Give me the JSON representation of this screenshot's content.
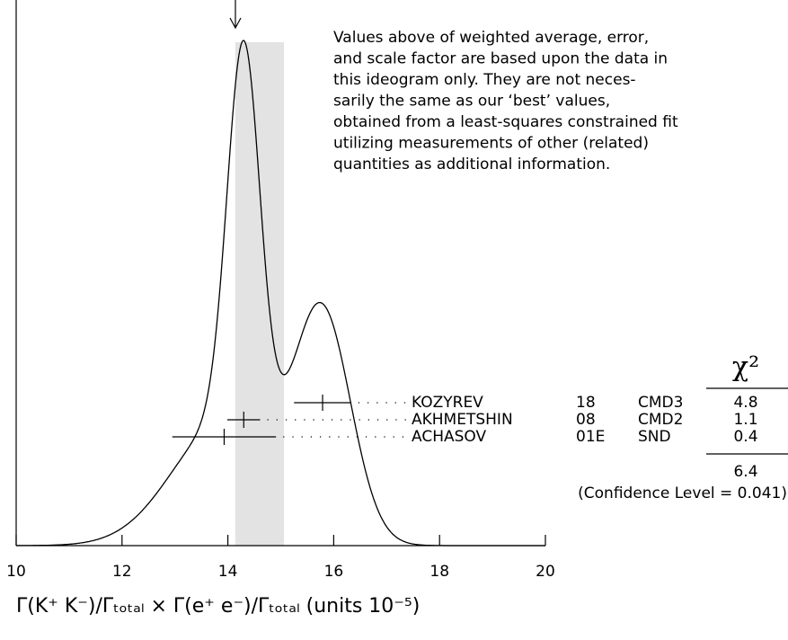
{
  "chart_data": {
    "type": "ideogram",
    "note": [
      "Values above of weighted average, error,",
      "and scale factor are based upon the data in",
      "this ideogram only.  They are not neces-",
      "sarily the same as our ‘best’ values,",
      "obtained from a least-squares constrained fit",
      "utilizing measurements of other (related)",
      "quantities as additional information."
    ],
    "x_label": "Γ(K⁺ K⁻)/Γₜₒₜₐₗ  ×  Γ(e⁺ e⁻)/Γₜₒₜₐₗ (units 10⁻⁵)",
    "xlim": [
      10,
      20
    ],
    "xticks": [
      10,
      12,
      14,
      16,
      18,
      20
    ],
    "weighted_average": {
      "value": 14.6,
      "error": 0.46
    },
    "chi2_header": "χ²",
    "measurements": [
      {
        "name": "KOZYREV",
        "year": "18",
        "experiment": "CMD3",
        "value": 15.79,
        "error": 0.54,
        "chi2": 4.8
      },
      {
        "name": "AKHMETSHIN",
        "year": "08",
        "experiment": "CMD2",
        "value": 14.3,
        "error": 0.31,
        "chi2": 1.1
      },
      {
        "name": "ACHASOV",
        "year": "01E",
        "experiment": "SND",
        "value": 13.93,
        "error": 0.98,
        "chi2": 0.4
      }
    ],
    "chi2_total": 6.4,
    "confidence_level": {
      "value": 0.041,
      "label": "(Confidence Level = 0.041)"
    }
  }
}
